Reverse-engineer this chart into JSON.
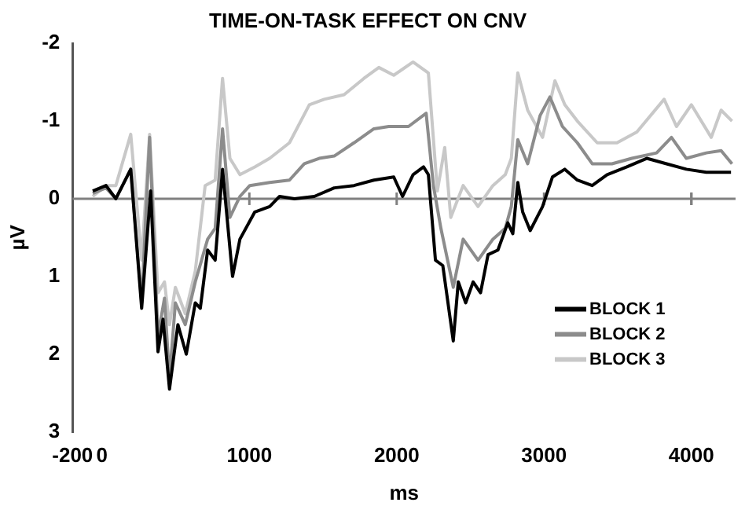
{
  "chart_data": {
    "type": "line",
    "title": "TIME-ON-TASK EFFECT ON CNV",
    "xlabel": "ms",
    "ylabel": "µV",
    "xlim": [
      -200,
      4300
    ],
    "xticks": [
      -200,
      0,
      1000,
      2000,
      3000,
      4000
    ],
    "ylim": [
      3,
      -2
    ],
    "yticks": [
      -2,
      -1,
      0,
      1,
      2,
      3
    ],
    "grid": false,
    "legend": "bottom right",
    "marker": "none",
    "line_style": "solid",
    "ref_lines": [
      {
        "axis": "y",
        "value": 0,
        "color": "#808080"
      }
    ],
    "series": [
      {
        "name": "BLOCK 1",
        "color": "#000000",
        "x": [
          -63,
          27,
          94,
          195,
          269,
          330,
          380,
          414,
          458,
          515,
          572,
          633,
          667,
          717,
          768,
          818,
          886,
          936,
          1037,
          1138,
          1205,
          1306,
          1441,
          1576,
          1710,
          1845,
          1980,
          2040,
          2111,
          2182,
          2215,
          2263,
          2313,
          2384,
          2418,
          2468,
          2519,
          2569,
          2620,
          2687,
          2754,
          2788,
          2822,
          2855,
          2906,
          2990,
          3057,
          3141,
          3226,
          3327,
          3428,
          3562,
          3697,
          3832,
          3966,
          4101,
          4269
        ],
        "values": [
          -0.1,
          -0.17,
          0,
          -0.38,
          1.41,
          -0.1,
          1.97,
          1.55,
          2.45,
          1.62,
          2.0,
          1.34,
          1.41,
          0.66,
          0.79,
          -0.38,
          1.0,
          0.52,
          0.17,
          0.1,
          -0.03,
          0,
          -0.03,
          -0.14,
          -0.17,
          -0.24,
          -0.28,
          -0.03,
          -0.31,
          -0.41,
          -0.31,
          0.79,
          0.86,
          1.83,
          1.07,
          1.34,
          1.07,
          1.21,
          0.72,
          0.66,
          0.31,
          0.45,
          -0.21,
          0.17,
          0.41,
          0.1,
          -0.28,
          -0.38,
          -0.24,
          -0.17,
          -0.31,
          -0.41,
          -0.52,
          -0.45,
          -0.38,
          -0.34,
          -0.34
        ]
      },
      {
        "name": "BLOCK 2",
        "color": "#8c8c8c",
        "x": [
          -63,
          27,
          94,
          195,
          269,
          323,
          380,
          424,
          458,
          498,
          565,
          633,
          717,
          768,
          818,
          868,
          936,
          1003,
          1138,
          1272,
          1373,
          1474,
          1576,
          1710,
          1845,
          1946,
          2080,
          2200,
          2249,
          2300,
          2384,
          2451,
          2552,
          2653,
          2737,
          2778,
          2822,
          2889,
          2973,
          3040,
          3125,
          3226,
          3327,
          3461,
          3596,
          3764,
          3865,
          3966,
          4101,
          4202,
          4276
        ],
        "values": [
          -0.07,
          -0.14,
          0,
          -0.38,
          1.34,
          -0.79,
          1.76,
          1.28,
          2.31,
          1.34,
          1.62,
          1.07,
          0.52,
          0.38,
          -0.9,
          0.24,
          -0.03,
          -0.17,
          -0.21,
          -0.24,
          -0.45,
          -0.52,
          -0.55,
          -0.72,
          -0.9,
          -0.93,
          -0.93,
          -1.1,
          -0.17,
          0.38,
          1.14,
          0.52,
          0.79,
          0.52,
          0.38,
          0.1,
          -0.76,
          -0.45,
          -1.07,
          -1.31,
          -0.93,
          -0.72,
          -0.45,
          -0.45,
          -0.52,
          -0.59,
          -0.79,
          -0.52,
          -0.59,
          -0.62,
          -0.45
        ]
      },
      {
        "name": "BLOCK 3",
        "color": "#c8c8c8",
        "x": [
          -63,
          27,
          94,
          195,
          269,
          323,
          380,
          424,
          458,
          498,
          565,
          633,
          700,
          768,
          818,
          868,
          936,
          1037,
          1138,
          1272,
          1407,
          1508,
          1643,
          1778,
          1879,
          1980,
          2111,
          2215,
          2276,
          2326,
          2367,
          2451,
          2552,
          2653,
          2737,
          2778,
          2822,
          2889,
          2990,
          3074,
          3141,
          3226,
          3361,
          3495,
          3630,
          3815,
          3899,
          4000,
          4135,
          4202,
          4276
        ],
        "values": [
          -0.03,
          -0.17,
          -0.17,
          -0.83,
          0.79,
          -0.83,
          1.21,
          1.07,
          1.62,
          1.14,
          1.48,
          0.93,
          -0.17,
          -0.24,
          -1.55,
          -0.52,
          -0.31,
          -0.41,
          -0.52,
          -0.72,
          -1.21,
          -1.28,
          -1.34,
          -1.55,
          -1.69,
          -1.59,
          -1.76,
          -1.62,
          -0.1,
          -0.66,
          0.24,
          -0.17,
          0.1,
          -0.17,
          -0.31,
          -0.52,
          -1.62,
          -1.14,
          -0.79,
          -1.52,
          -1.21,
          -1.0,
          -0.72,
          -0.72,
          -0.86,
          -1.28,
          -0.93,
          -1.21,
          -0.79,
          -1.14,
          -1.0
        ]
      }
    ]
  }
}
